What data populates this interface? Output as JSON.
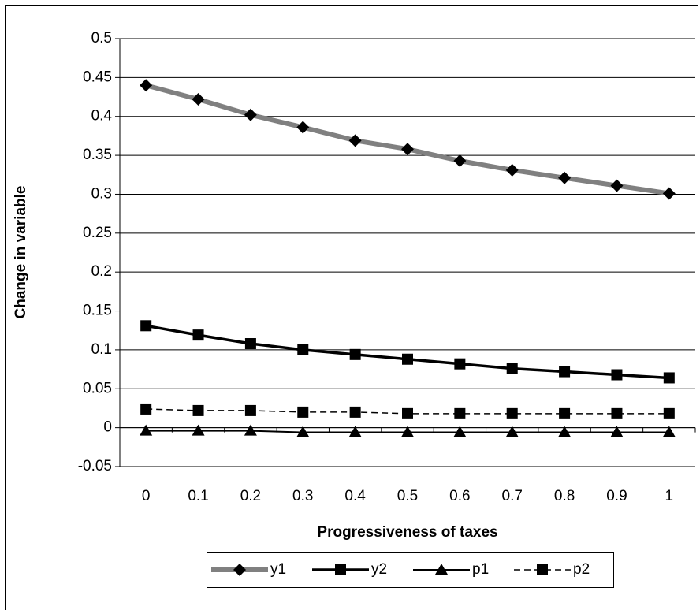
{
  "chart_data": {
    "type": "line",
    "x_label": "Progressiveness of taxes",
    "y_label": "Change in variable",
    "categories": [
      "0",
      "0.1",
      "0.2",
      "0.3",
      "0.4",
      "0.5",
      "0.6",
      "0.7",
      "0.8",
      "0.9",
      "1"
    ],
    "series": [
      {
        "name": "y1",
        "color": "#808080",
        "marker": "diamond",
        "dash": false,
        "values": [
          0.44,
          0.422,
          0.402,
          0.386,
          0.369,
          0.358,
          0.343,
          0.331,
          0.321,
          0.311,
          0.301
        ]
      },
      {
        "name": "y2",
        "color": "#000000",
        "marker": "square",
        "dash": false,
        "values": [
          0.131,
          0.119,
          0.108,
          0.1,
          0.094,
          0.088,
          0.082,
          0.076,
          0.072,
          0.068,
          0.064
        ]
      },
      {
        "name": "p1",
        "color": "#000000",
        "marker": "triangle",
        "dash": false,
        "values": [
          -0.004,
          -0.004,
          -0.004,
          -0.006,
          -0.006,
          -0.006,
          -0.006,
          -0.006,
          -0.006,
          -0.006,
          -0.006
        ]
      },
      {
        "name": "p2",
        "color": "#000000",
        "marker": "square",
        "dash": true,
        "values": [
          0.024,
          0.022,
          0.022,
          0.02,
          0.02,
          0.018,
          0.018,
          0.018,
          0.018,
          0.018,
          0.018
        ]
      }
    ],
    "ylim": [
      -0.05,
      0.5
    ],
    "yticks": [
      -0.05,
      0,
      0.05,
      0.1,
      0.15,
      0.2,
      0.25,
      0.3,
      0.35,
      0.4,
      0.45,
      0.5
    ],
    "grid": true,
    "legend": "bottom"
  }
}
